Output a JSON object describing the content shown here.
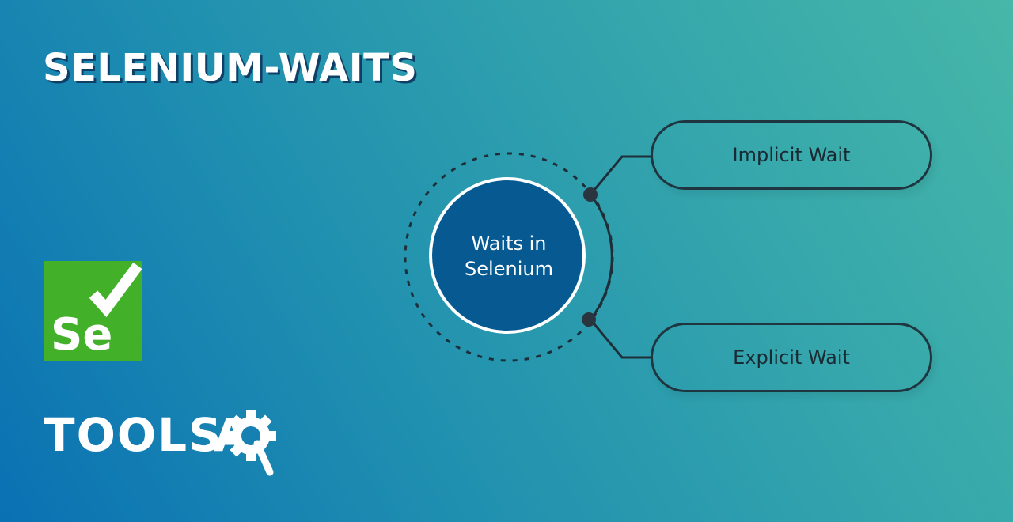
{
  "title": "SELENIUM-WAITS",
  "diagram": {
    "center": {
      "line1": "Waits in",
      "line2": "Selenium"
    },
    "branches": [
      {
        "label": "Implicit Wait"
      },
      {
        "label": "Explicit Wait"
      }
    ]
  },
  "logos": {
    "selenium": {
      "text": "Se",
      "color": "#43b02a"
    },
    "toolsqa": {
      "part1": "TOOLS",
      "part2": "A"
    }
  },
  "colors": {
    "center_circle": "#075a91",
    "line": "#1f2f3a",
    "text_light": "#ffffff",
    "text_dark": "#1a2a33"
  }
}
